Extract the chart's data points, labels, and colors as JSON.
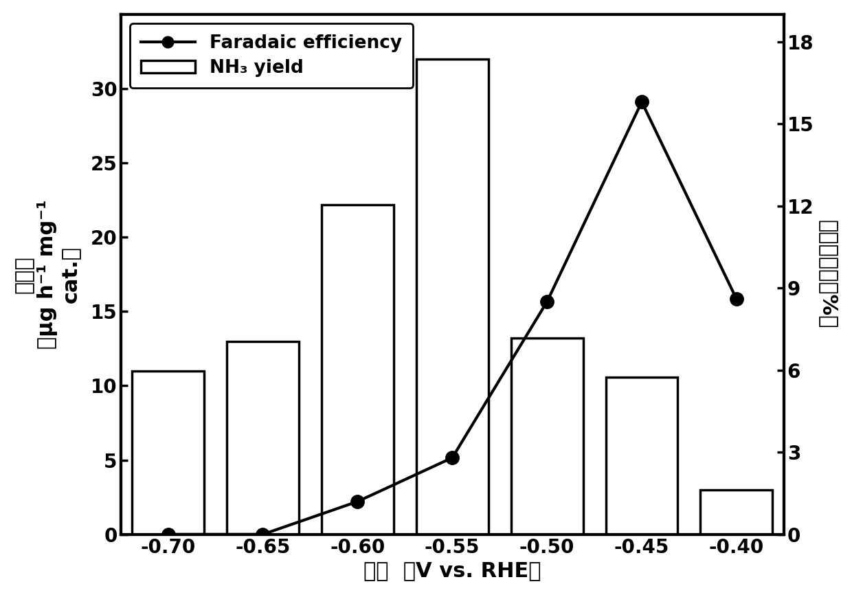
{
  "x_positions": [
    -0.7,
    -0.65,
    -0.6,
    -0.55,
    -0.5,
    -0.45,
    -0.4
  ],
  "x_labels": [
    "-0.70",
    "-0.65",
    "-0.60",
    "-0.55",
    "-0.50",
    "-0.45",
    "-0.40"
  ],
  "bar_values": [
    11.0,
    13.0,
    22.2,
    32.0,
    13.2,
    10.6,
    3.0
  ],
  "line_values": [
    0.0,
    0.0,
    1.2,
    2.8,
    8.5,
    15.8,
    8.6
  ],
  "bar_color": "#ffffff",
  "bar_edgecolor": "#000000",
  "line_color": "#000000",
  "marker_color": "#000000",
  "left_ylabel_line1": "产氨量",
  "left_ylabel_line2": "（μg h⁻¹ mg⁻¹",
  "left_ylabel_line3": "cat.）",
  "right_ylabel": "法拉第效率（%）",
  "xlabel": "电压  （V vs. RHE）",
  "left_ylim": [
    0,
    35
  ],
  "left_yticks": [
    0,
    5,
    10,
    15,
    20,
    25,
    30
  ],
  "right_ylim": [
    0,
    19
  ],
  "right_yticks": [
    0,
    3,
    6,
    9,
    12,
    15,
    18
  ],
  "bar_width": 0.038,
  "legend_faradaic": "Faradaic efficiency",
  "legend_nh3": "NH₃ yield",
  "label_fontsize": 22,
  "tick_fontsize": 20,
  "legend_fontsize": 19,
  "linewidth": 3.0,
  "markersize": 14,
  "bar_linewidth": 2.5,
  "spine_linewidth": 3.0
}
